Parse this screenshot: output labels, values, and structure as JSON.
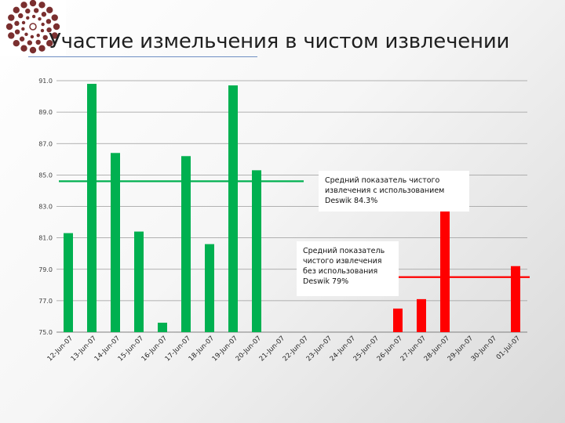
{
  "slide": {
    "title": "Участие измельчения в чистом извлечении"
  },
  "colors": {
    "with_deswik": "#00b050",
    "without_deswik": "#ff0000",
    "gridline": "#9a9a9a",
    "logo": "#7a2f2f"
  },
  "chart_data": {
    "type": "bar",
    "title": "",
    "xlabel": "",
    "ylabel": "",
    "ylim": [
      75.0,
      91.0
    ],
    "yticks": [
      "75.0",
      "77.0",
      "79.0",
      "81.0",
      "83.0",
      "85.0",
      "87.0",
      "89.0",
      "91.0"
    ],
    "grid": true,
    "categories": [
      "12-Jun-07",
      "13-Jun-07",
      "14-Jun-07",
      "15-Jun-07",
      "16-Jun-07",
      "17-Jun-07",
      "18-Jun-07",
      "19-Jun-07",
      "20-Jun-07",
      "21-Jun-07",
      "22-Jun-07",
      "23-Jun-07",
      "24-Jun-07",
      "25-Jun-07",
      "26-Jun-07",
      "27-Jun-07",
      "28-Jun-07",
      "29-Jun-07",
      "30-Jun-07",
      "01-Jul-07"
    ],
    "series": [
      {
        "color": "#00b050",
        "values": [
          81.3,
          90.8,
          86.4,
          81.4,
          75.6,
          86.2,
          80.6,
          90.7,
          85.3,
          null,
          null,
          null,
          null,
          null,
          null,
          null,
          null,
          null,
          null,
          null
        ]
      },
      {
        "color": "#ff0000",
        "values": [
          null,
          null,
          null,
          null,
          null,
          null,
          null,
          null,
          null,
          null,
          null,
          null,
          null,
          null,
          76.5,
          77.1,
          82.9,
          null,
          null,
          79.2
        ]
      }
    ],
    "reference_lines": [
      {
        "value": 84.6,
        "color": "#00b050",
        "from": "12-Jun-07",
        "to": "22-Jun-07"
      },
      {
        "value": 78.5,
        "color": "#ff0000",
        "from": "26-Jun-07",
        "to": "01-Jul-07"
      }
    ],
    "annotations": [
      "Средний показатель чистого\nизвлечения с использованием\nDeswik 84.3%",
      "Средний показатель\nчистого извлечения\nбез использования\nDeswik 79%"
    ]
  }
}
